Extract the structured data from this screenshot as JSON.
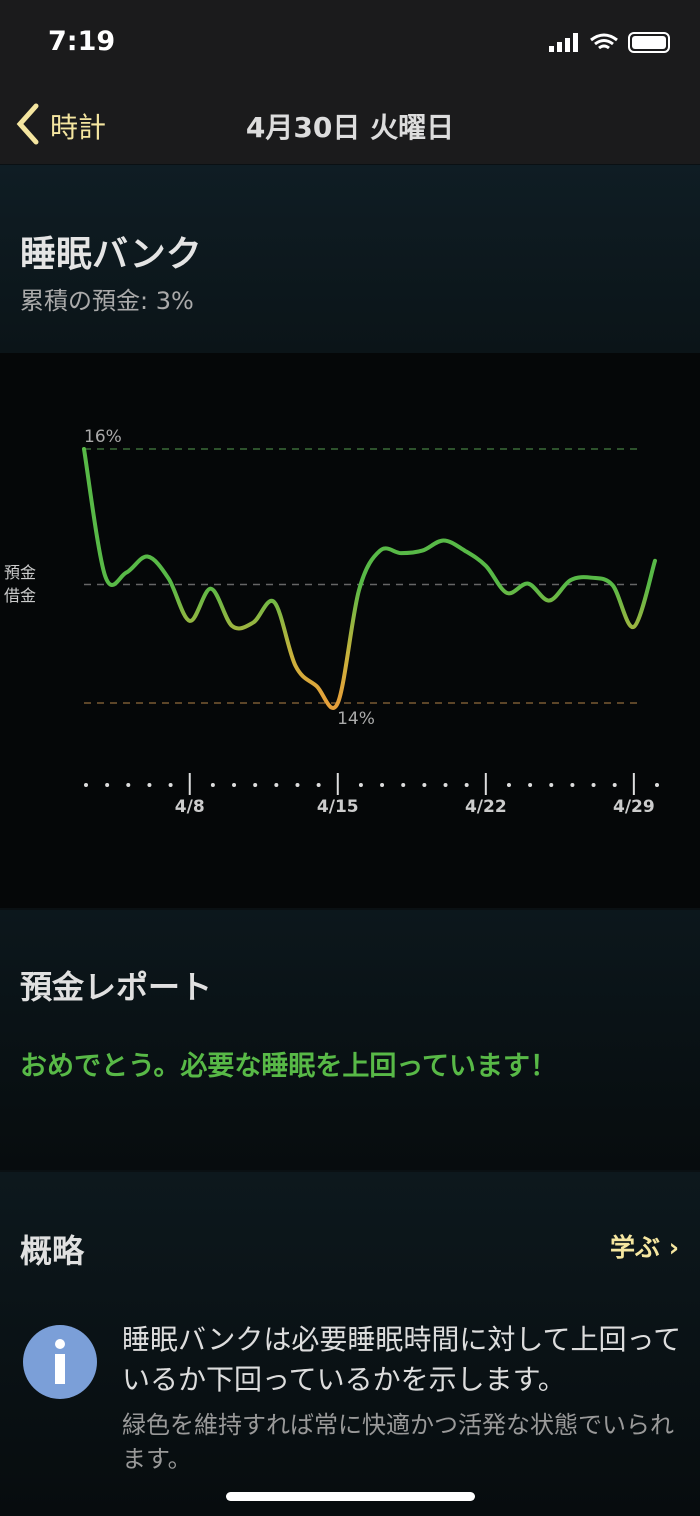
{
  "status_bar": {
    "time": "7:19"
  },
  "nav": {
    "back": "時計",
    "title": "4月30日 火曜日"
  },
  "sleep_bank": {
    "title": "睡眠バンク",
    "subtitle": "累積の預金: 3%"
  },
  "chart_data": {
    "type": "line",
    "categories": [
      null,
      null,
      null,
      null,
      null,
      "4/8",
      null,
      null,
      null,
      null,
      null,
      null,
      "4/15",
      null,
      null,
      null,
      null,
      null,
      null,
      "4/22",
      null,
      null,
      null,
      null,
      null,
      null,
      "4/29",
      null
    ],
    "series": [
      {
        "values": [
          16,
          1,
          1.4,
          3.3,
          0.7,
          -4.3,
          -0.5,
          -4.9,
          -4.5,
          -2.1,
          -9.6,
          -12,
          -14,
          -0.7,
          4,
          3.7,
          4,
          5.2,
          4,
          2.2,
          -1,
          0.1,
          -1.9,
          0.5,
          0.8,
          -0.1,
          -5,
          2.8
        ]
      }
    ],
    "colors": {
      "deposit": "#58b947",
      "debt": "#e6a03a"
    },
    "ylim": [
      -14,
      16
    ],
    "yticks": [
      {
        "value": 16,
        "label": "16%"
      },
      {
        "value": -14,
        "label": "14%"
      }
    ],
    "baseline": {
      "value": 0,
      "labels": [
        "預金",
        "借金"
      ]
    }
  },
  "report": {
    "title": "預金レポート",
    "message": "おめでとう。必要な睡眠を上回っています！"
  },
  "overview": {
    "title": "概略",
    "link": "学ぶ",
    "text": "睡眠バンクは必要睡眠時間に対して上回っているか下回っているかを示します。",
    "note": "緑色を維持すれば常に快適かつ活発な状態でいられます。"
  }
}
